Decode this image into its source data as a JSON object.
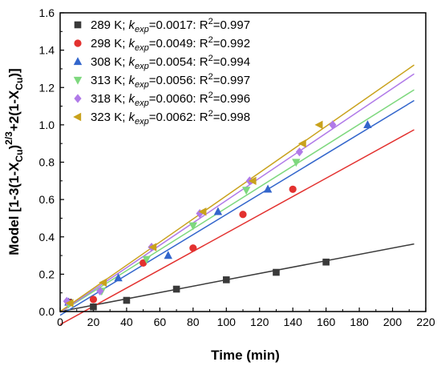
{
  "chart_data": {
    "type": "scatter",
    "xlabel": "Time (min)",
    "ylabel": {
      "prefix": "Model [1-3(1-X",
      "sub1": "Cu",
      "mid": ")",
      "sup": "2/3",
      "mid2": "+2(1-X",
      "sub2": "Cu",
      "suffix": ")]"
    },
    "xlim": [
      0,
      220
    ],
    "ylim": [
      0,
      1.6
    ],
    "xticks": [
      "0",
      "20",
      "40",
      "60",
      "80",
      "100",
      "120",
      "140",
      "160",
      "180",
      "200",
      "220"
    ],
    "yticks": [
      "0.0",
      "0.2",
      "0.4",
      "0.6",
      "0.8",
      "1.0",
      "1.2",
      "1.4",
      "1.6"
    ],
    "legend_position": "top-left",
    "fit_line_x_range": [
      0,
      213
    ],
    "series": [
      {
        "name": "289 K",
        "k_label": "=0.0017",
        "r2_value": "=0.997",
        "k_exp": 0.0017,
        "intercept": 0.0,
        "marker": "square",
        "color": "#3a3a3a",
        "points": [
          [
            5,
            0.05
          ],
          [
            20,
            0.025
          ],
          [
            40,
            0.06
          ],
          [
            70,
            0.12
          ],
          [
            100,
            0.17
          ],
          [
            130,
            0.21
          ],
          [
            160,
            0.265
          ]
        ]
      },
      {
        "name": "298 K",
        "k_label": "=0.0049",
        "r2_value": "=0.992",
        "k_exp": 0.0049,
        "intercept": -0.07,
        "marker": "circle",
        "color": "#e3312f",
        "points": [
          [
            5,
            0.05
          ],
          [
            20,
            0.065
          ],
          [
            50,
            0.26
          ],
          [
            80,
            0.34
          ],
          [
            110,
            0.52
          ],
          [
            140,
            0.655
          ]
        ]
      },
      {
        "name": "308 K",
        "k_label": "=0.0054",
        "r2_value": "=0.994",
        "k_exp": 0.0054,
        "intercept": -0.02,
        "marker": "triangle-up",
        "color": "#3366cc",
        "points": [
          [
            5,
            0.05
          ],
          [
            35,
            0.18
          ],
          [
            65,
            0.3
          ],
          [
            95,
            0.535
          ],
          [
            125,
            0.655
          ],
          [
            185,
            1.0
          ]
        ]
      },
      {
        "name": "313 K",
        "k_label": "=0.0056",
        "r2_value": "=0.997",
        "k_exp": 0.0056,
        "intercept": -0.005,
        "marker": "triangle-down",
        "color": "#7ed87e",
        "points": [
          [
            5,
            0.04
          ],
          [
            25,
            0.11
          ],
          [
            52,
            0.28
          ],
          [
            80,
            0.46
          ],
          [
            112,
            0.65
          ],
          [
            142,
            0.8
          ]
        ]
      },
      {
        "name": "318 K",
        "k_label": "=0.0060",
        "r2_value": "=0.996",
        "k_exp": 0.006,
        "intercept": -0.005,
        "marker": "diamond",
        "color": "#b07ae8",
        "points": [
          [
            4,
            0.055
          ],
          [
            24,
            0.11
          ],
          [
            55,
            0.345
          ],
          [
            84,
            0.525
          ],
          [
            114,
            0.7
          ],
          [
            144,
            0.855
          ],
          [
            164,
            1.0
          ]
        ]
      },
      {
        "name": "323 K",
        "k_label": "=0.0062",
        "r2_value": "=0.998",
        "k_exp": 0.0062,
        "intercept": 0.0,
        "marker": "triangle-left",
        "color": "#c9a21c",
        "points": [
          [
            6,
            0.045
          ],
          [
            26,
            0.155
          ],
          [
            56,
            0.345
          ],
          [
            86,
            0.535
          ],
          [
            116,
            0.7
          ],
          [
            146,
            0.9
          ],
          [
            156,
            1.0
          ]
        ]
      }
    ]
  }
}
